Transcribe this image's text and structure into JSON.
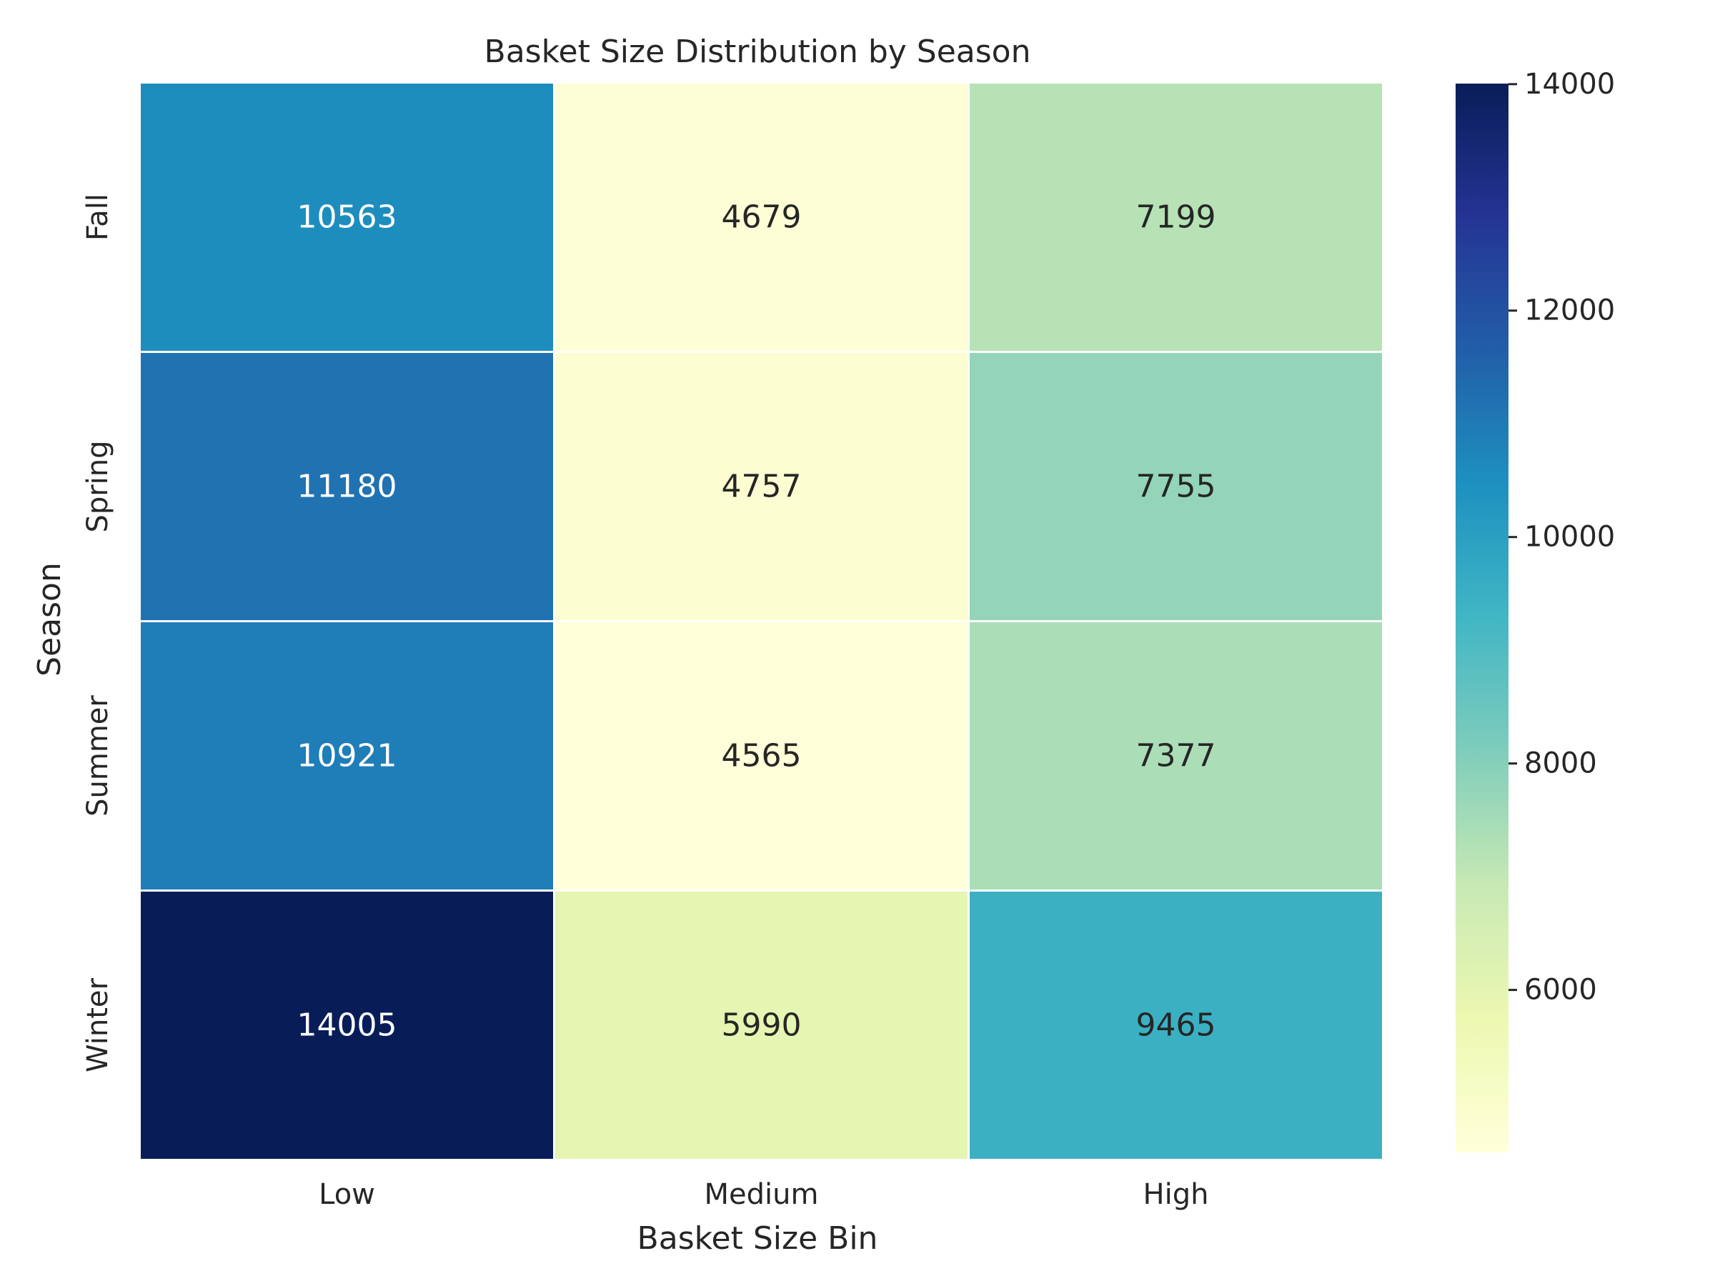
{
  "chart_data": {
    "type": "heatmap",
    "title": "Basket Size Distribution by Season",
    "xlabel": "Basket Size Bin",
    "ylabel": "Season",
    "x_categories": [
      "Low",
      "Medium",
      "High"
    ],
    "y_categories": [
      "Fall",
      "Spring",
      "Summer",
      "Winter"
    ],
    "values": [
      [
        10563,
        4679,
        7199
      ],
      [
        11180,
        4757,
        7755
      ],
      [
        10921,
        4565,
        7377
      ],
      [
        14005,
        5990,
        9465
      ]
    ],
    "annotations": true,
    "colormap": "YlGnBu",
    "color_range": [
      4565,
      14005
    ],
    "colorbar_ticks": [
      6000,
      8000,
      10000,
      12000,
      14000
    ],
    "colorbar_tick_labels": [
      "6000",
      "8000",
      "10000",
      "12000",
      "14000"
    ]
  }
}
